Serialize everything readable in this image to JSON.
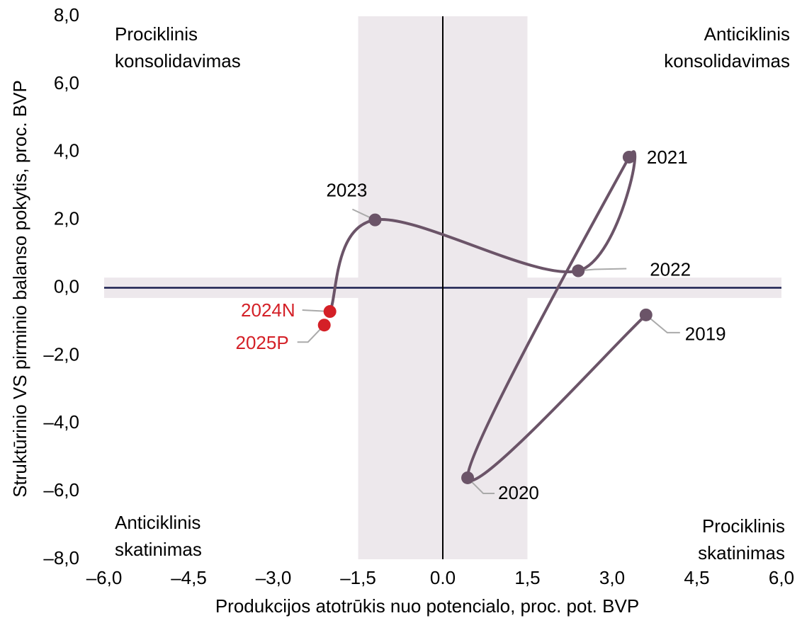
{
  "chart_data": {
    "type": "scatter",
    "xlabel": "Produkcijos atotrūkis nuo potencialo, proc. pot. BVP",
    "ylabel": "Struktūrinio VS pirminio balanso pokytis, proc. BVP",
    "xlim": [
      -6.0,
      6.0
    ],
    "ylim": [
      -8.0,
      8.0
    ],
    "xticks": [
      {
        "value": -6.0,
        "label": "–6,0"
      },
      {
        "value": -4.5,
        "label": "–4,5"
      },
      {
        "value": -3.0,
        "label": "–3,0"
      },
      {
        "value": -1.5,
        "label": "–1,5"
      },
      {
        "value": 0,
        "label": "0.0"
      },
      {
        "value": 1.5,
        "label": "1,5"
      },
      {
        "value": 3.0,
        "label": "3,0"
      },
      {
        "value": 4.5,
        "label": "4,5"
      },
      {
        "value": 6.0,
        "label": "6,0"
      }
    ],
    "yticks": [
      {
        "value": -8.0,
        "label": "–8,0"
      },
      {
        "value": -6.0,
        "label": "–6,0"
      },
      {
        "value": -4.0,
        "label": "–4,0"
      },
      {
        "value": -2.0,
        "label": "–2,0"
      },
      {
        "value": 0,
        "label": "0,0"
      },
      {
        "value": 2.0,
        "label": "2,0"
      },
      {
        "value": 4.0,
        "label": "4,0"
      },
      {
        "value": 6.0,
        "label": "6,0"
      },
      {
        "value": 8.0,
        "label": "8,0"
      }
    ],
    "shaded_x": [
      -1.5,
      1.5
    ],
    "shaded_y": [
      -0.3,
      0.3
    ],
    "shade_color": "#ede8ec",
    "line_color": "#6b5468",
    "points": {
      "labels": [
        "2019",
        "2020",
        "2021",
        "2022",
        "2023",
        "2024N",
        "2025P"
      ],
      "x": [
        3.6,
        0.44,
        3.3,
        2.4,
        -1.2,
        -2.0,
        -2.1
      ],
      "y": [
        -0.8,
        -5.6,
        3.85,
        0.5,
        2.0,
        -0.7,
        -1.1
      ],
      "colors": [
        "#6b5468",
        "#6b5468",
        "#6b5468",
        "#6b5468",
        "#6b5468",
        "#d42027",
        "#d42027"
      ]
    },
    "annotations": [
      {
        "text": "Prociklinis",
        "text2": "konsolidavimas"
      },
      {
        "text": "Anticiklinis",
        "text2": "konsolidavimas"
      },
      {
        "text": "Anticiklinis",
        "text2": "skatinimas"
      },
      {
        "text": "Prociklinis",
        "text2": "skatinimas"
      }
    ]
  }
}
